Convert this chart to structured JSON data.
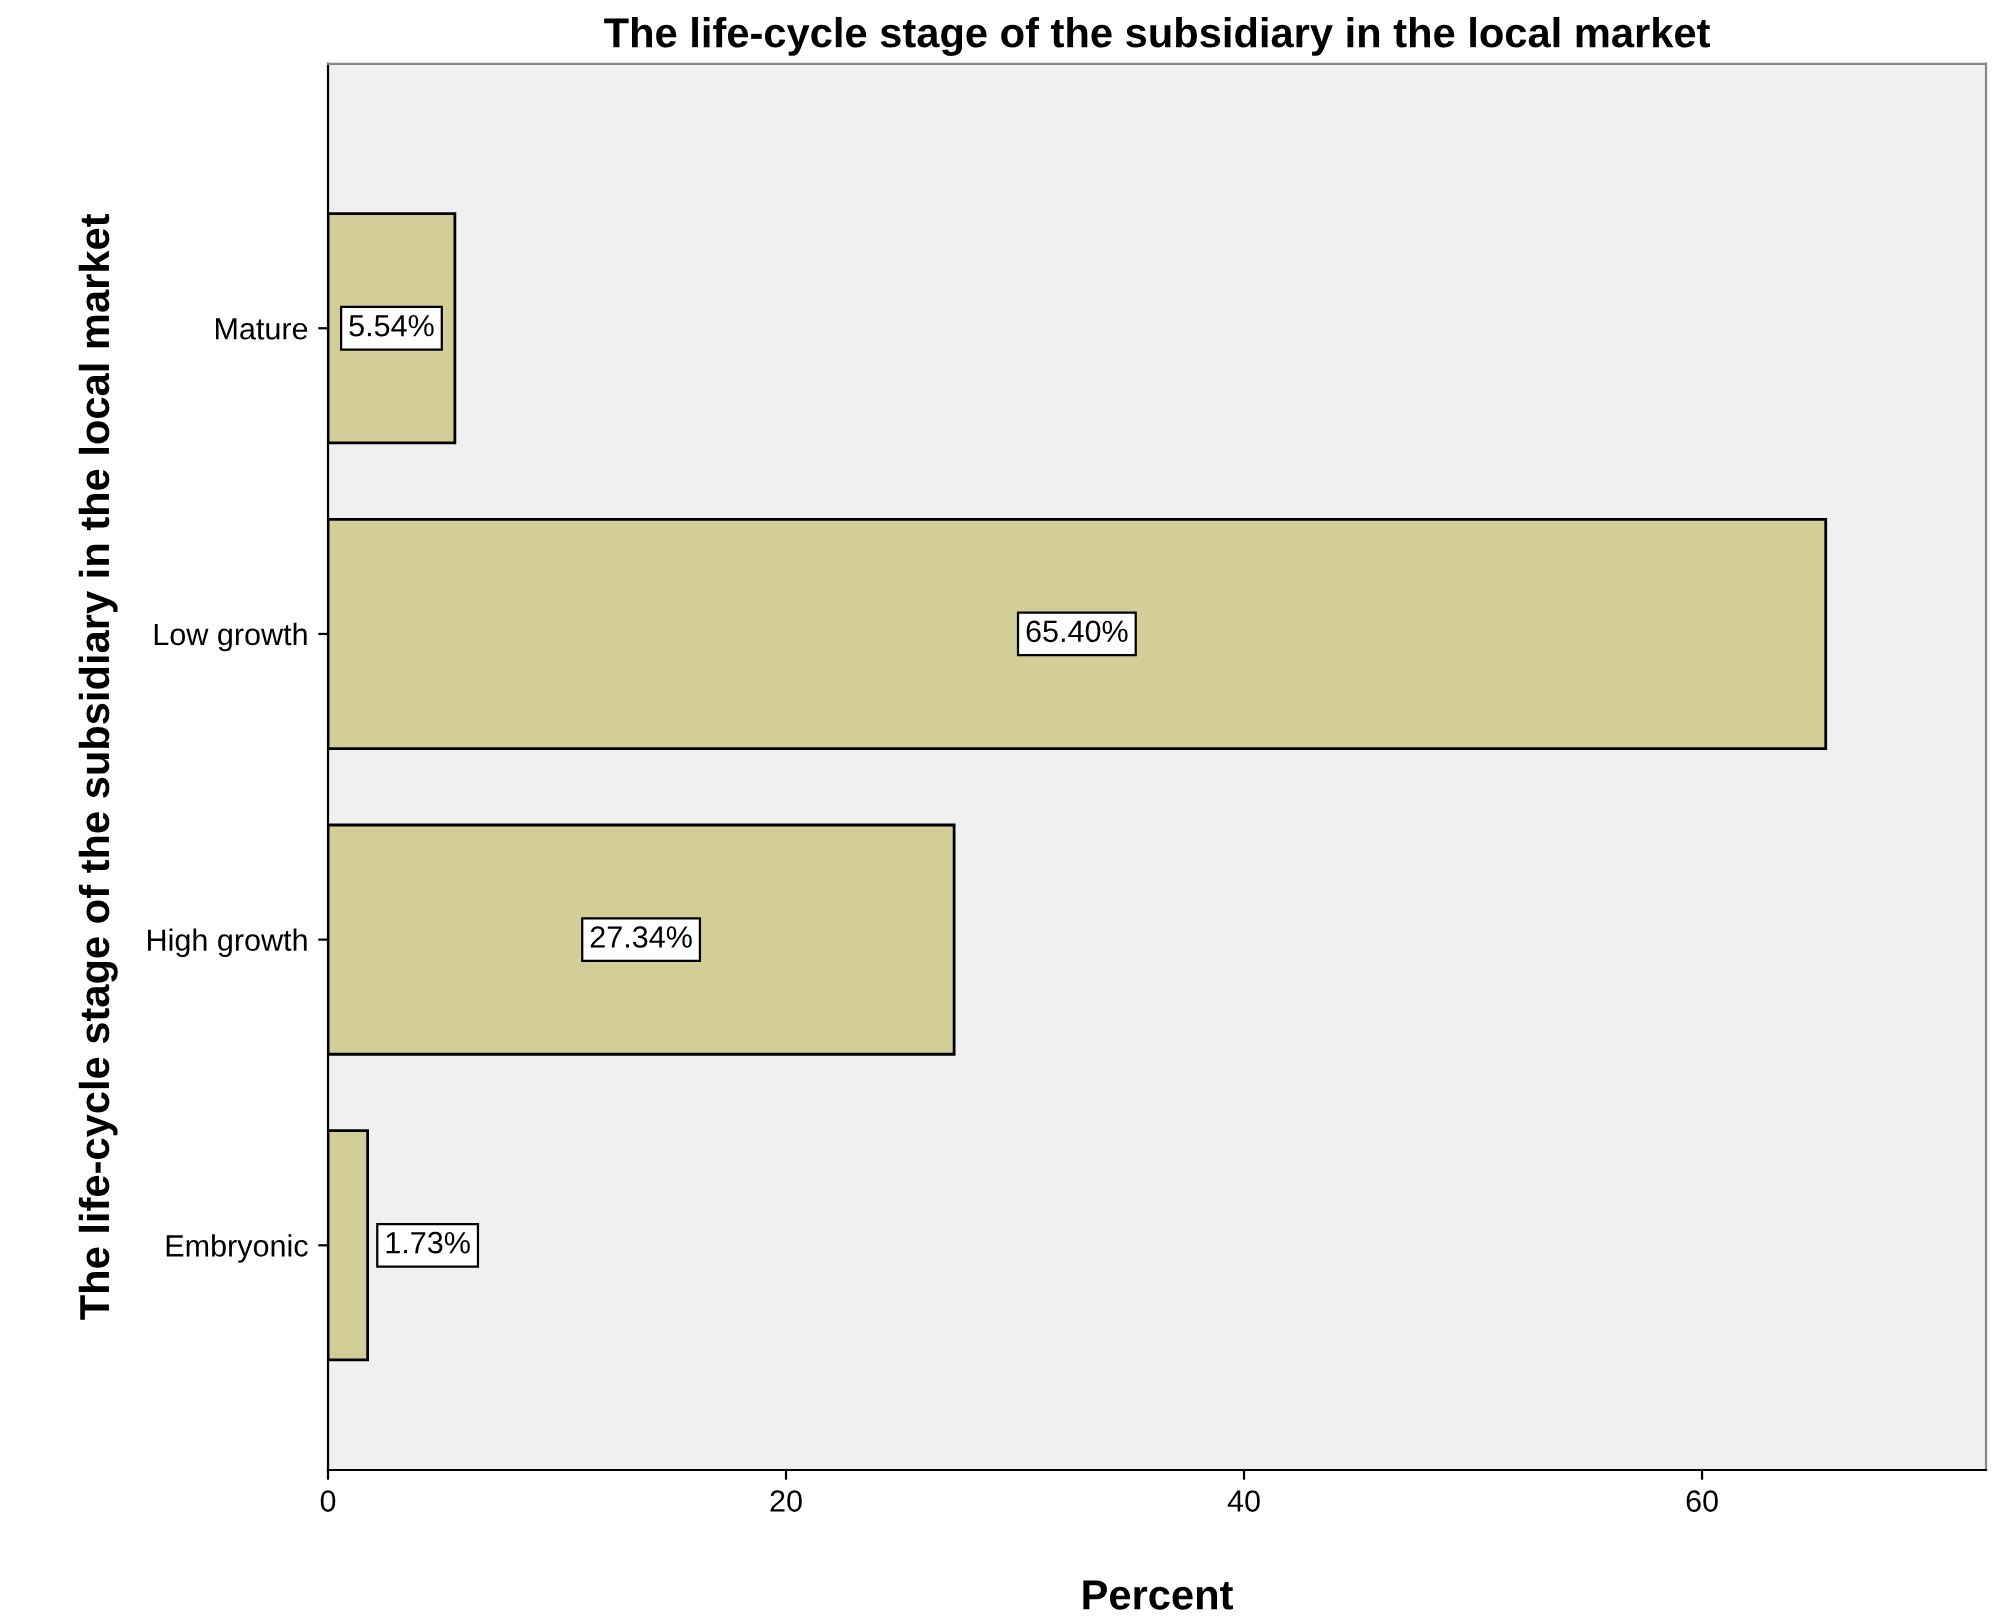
{
  "chart_data": {
    "type": "bar",
    "orientation": "horizontal",
    "title": "The life-cycle stage of the subsidiary in the local market",
    "xlabel": "Percent",
    "ylabel": "The life-cycle stage of the subsidiary in the local market",
    "categories": [
      "Mature",
      "Low growth",
      "High growth",
      "Embryonic"
    ],
    "values": [
      5.54,
      65.4,
      27.34,
      1.73
    ],
    "value_labels": [
      "5.54%",
      "65.40%",
      "27.34%",
      "1.73%"
    ],
    "color": "#d3ce97",
    "xlim": [
      0,
      72.4
    ],
    "xticks": [
      0,
      20,
      40,
      60
    ],
    "grid": false,
    "legend": false
  }
}
